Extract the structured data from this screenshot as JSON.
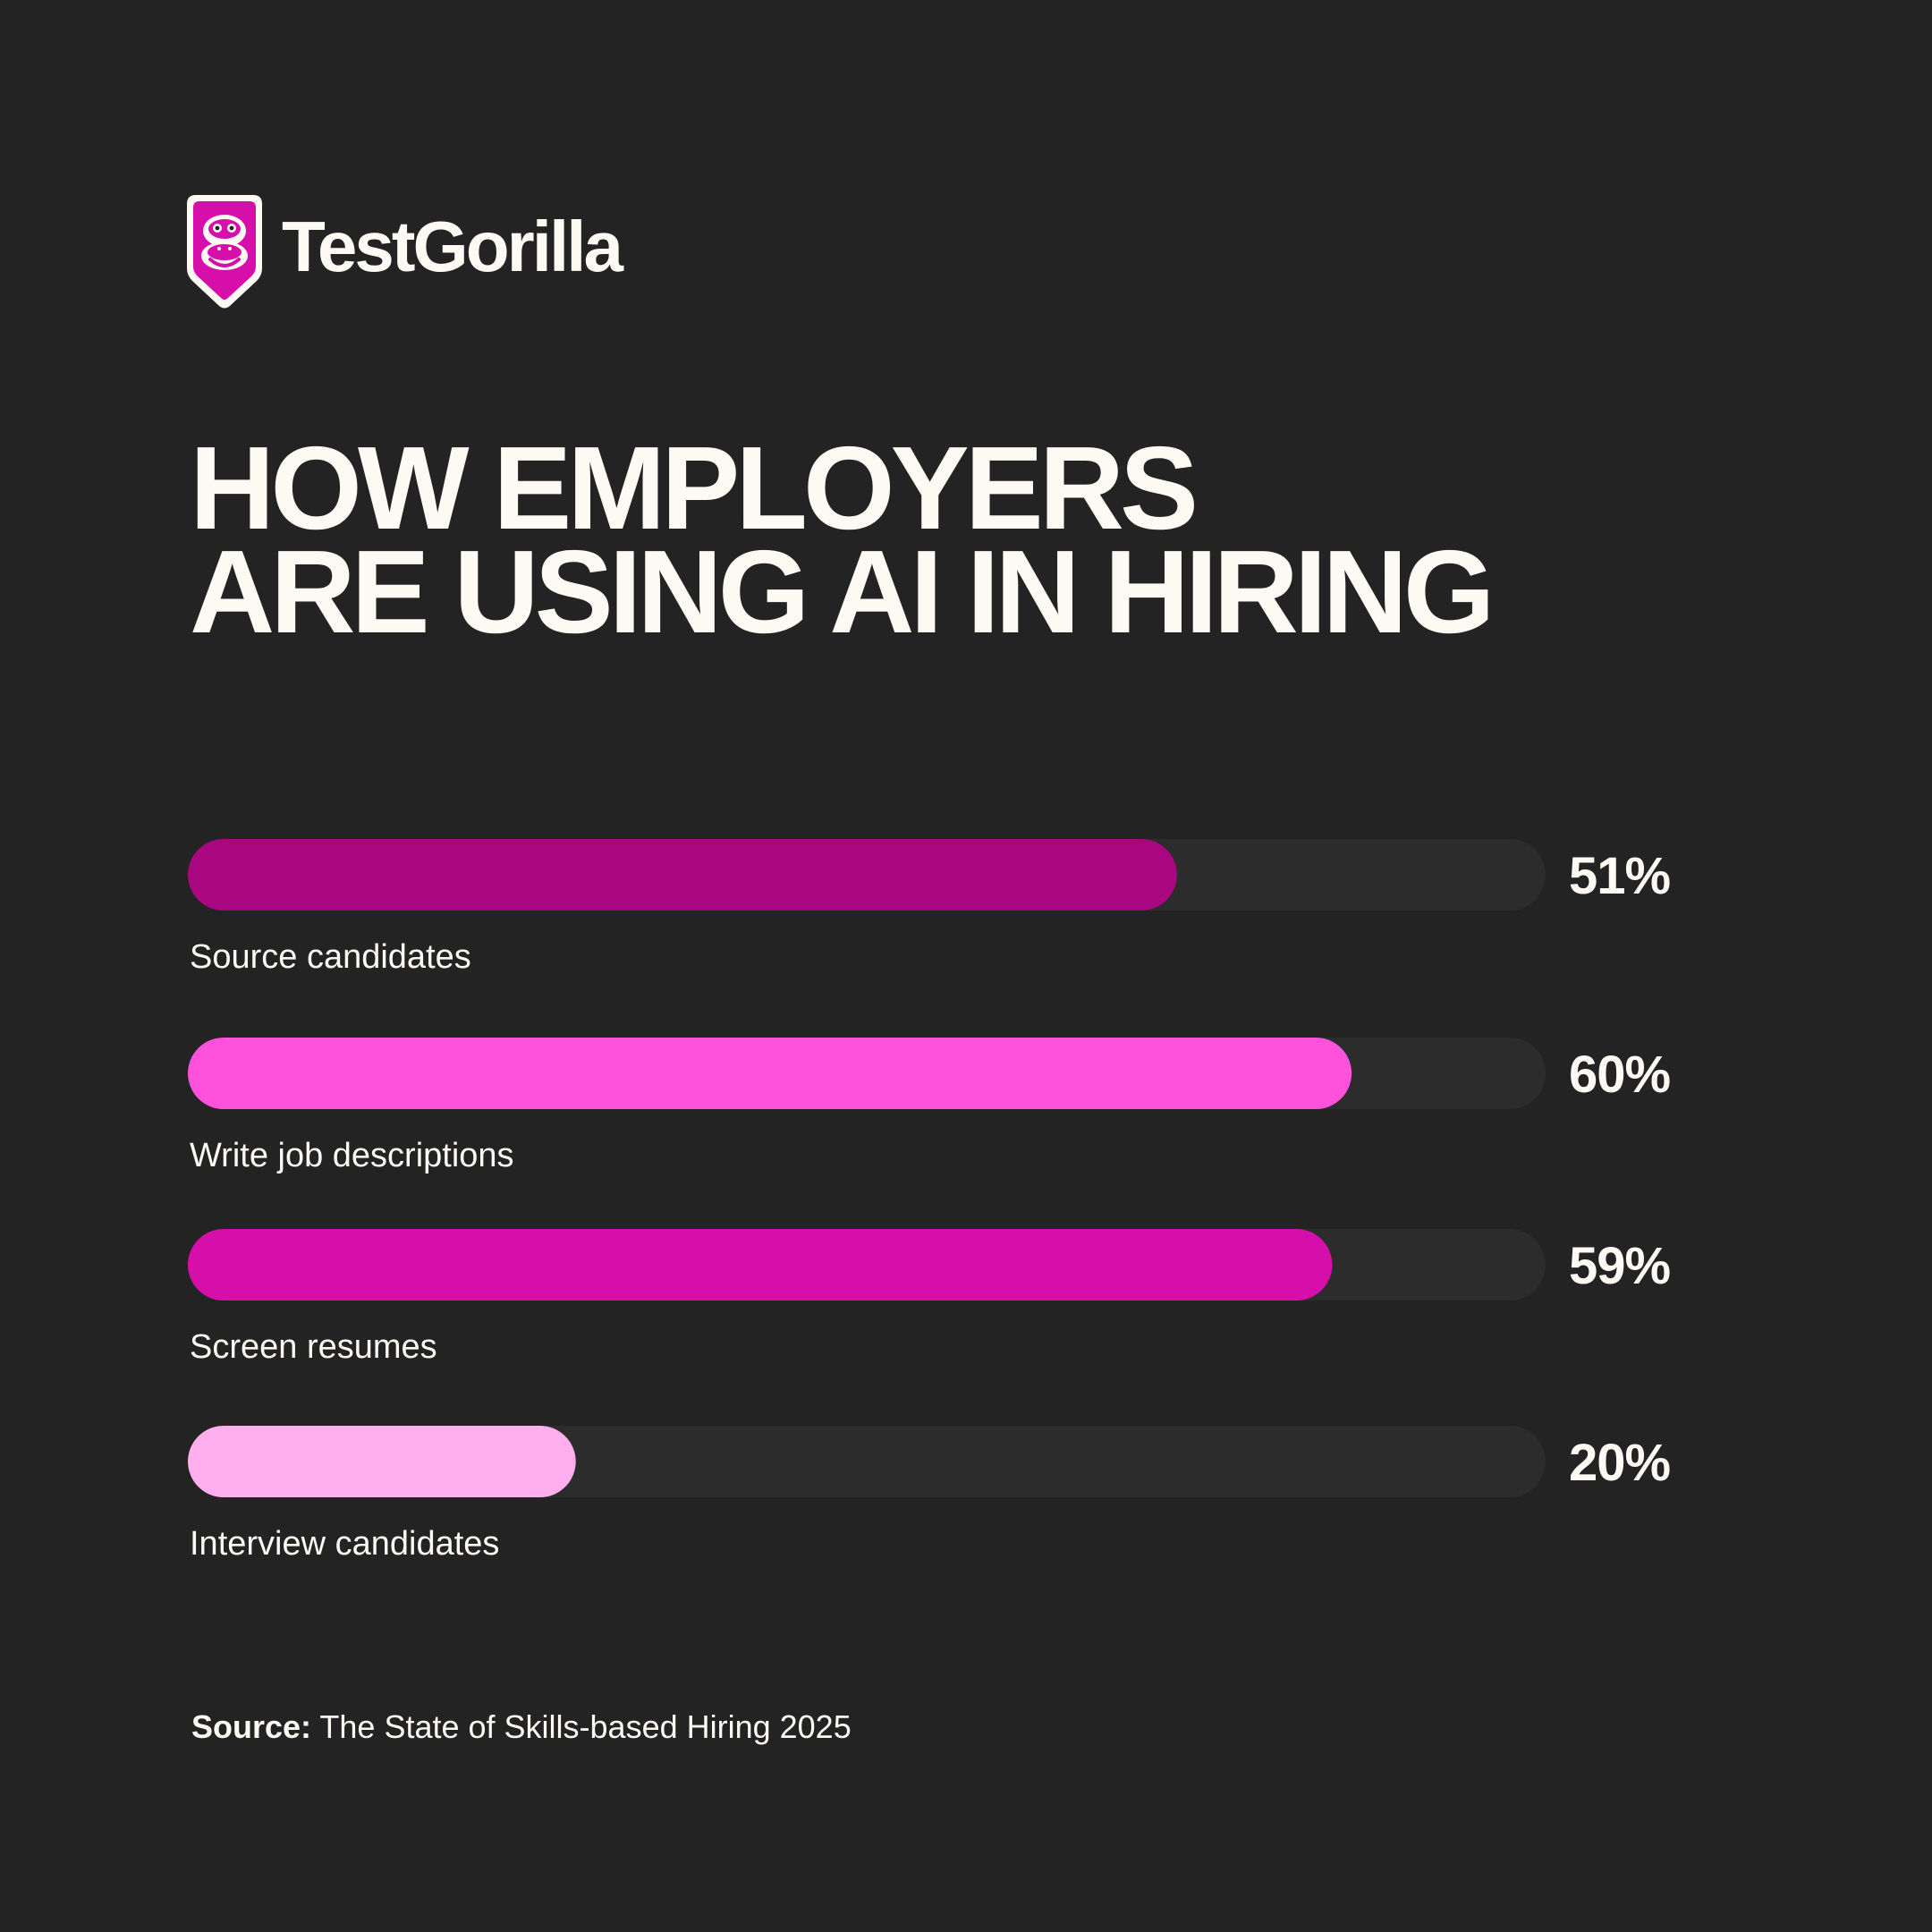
{
  "brand": {
    "name": "TestGorilla",
    "icon": "gorilla-shield-icon",
    "accent_color": "#d60fab"
  },
  "title_lines": [
    "HOW EMPLOYERS",
    "ARE USING AI IN HIRING"
  ],
  "chart_data": {
    "type": "bar",
    "orientation": "horizontal",
    "title": "HOW EMPLOYERS ARE USING AI IN HIRING",
    "categories": [
      "Source candidates",
      "Write job descriptions",
      "Screen resumes",
      "Interview candidates"
    ],
    "values": [
      51,
      60,
      59,
      20
    ],
    "value_labels": [
      "51%",
      "60%",
      "59%",
      "20%"
    ],
    "unit": "%",
    "colors": [
      "#a8077f",
      "#ff52dc",
      "#d60fab",
      "#ffaeee"
    ],
    "track_color": "#2c2c2c",
    "xlim": [
      0,
      70
    ],
    "grid": false,
    "legend": "none"
  },
  "source": {
    "label": "Source:",
    "text": "The State of Skills-based Hiring 2025"
  }
}
